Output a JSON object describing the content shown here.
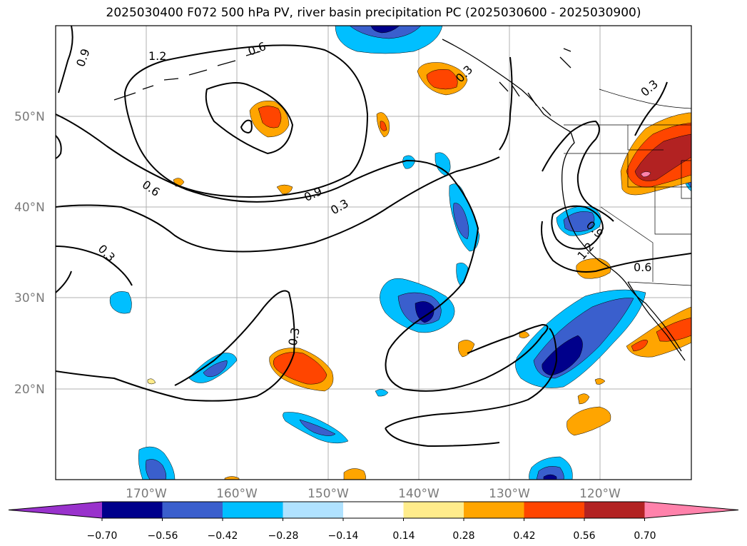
{
  "title": "2025030400 F072 500 hPa PV, river basin precipitation PC (2025030600 - 2025030900)",
  "map": {
    "lat_labels": [
      "50°N",
      "40°N",
      "30°N",
      "20°N"
    ],
    "lon_labels": [
      "170°W",
      "160°W",
      "150°W",
      "140°W",
      "130°W",
      "120°W"
    ],
    "contour_labels": [
      "0.9",
      "1.2",
      "0.6",
      "0.3",
      "0.6",
      "0.9",
      "0.3",
      "0.3",
      "0.3",
      "0.9",
      "1.2",
      "0.6",
      "0.3"
    ]
  },
  "colorbar": {
    "ticks": [
      "−0.70",
      "−0.56",
      "−0.42",
      "−0.28",
      "−0.14",
      "0.14",
      "0.28",
      "0.42",
      "0.56",
      "0.70"
    ],
    "colors": [
      "#9932cc",
      "#00008b",
      "#3a5fcd",
      "#00bfff",
      "#b0e2ff",
      "#ffffff",
      "#ffec8b",
      "#ffa500",
      "#ff4500",
      "#b22222",
      "#ff82ab"
    ]
  }
}
